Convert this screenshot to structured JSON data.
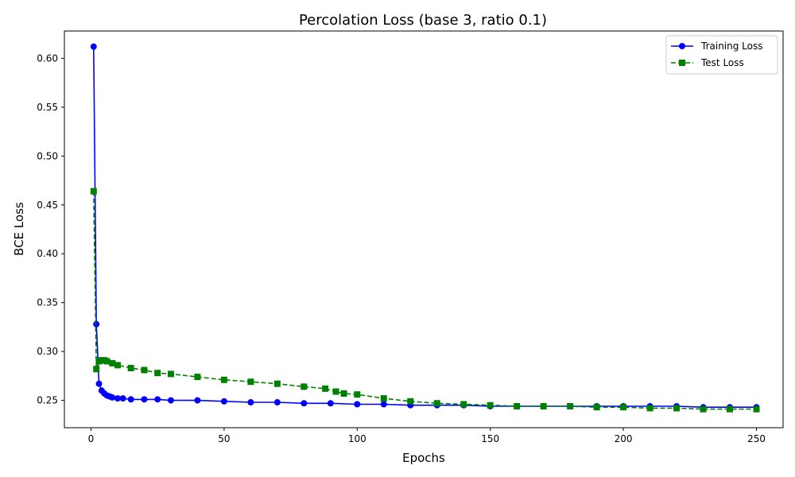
{
  "chart_data": {
    "type": "line",
    "title": "Percolation Loss (base 3, ratio 0.1)",
    "xlabel": "Epochs",
    "ylabel": "BCE Loss",
    "xlim": [
      -10,
      260
    ],
    "ylim": [
      0.222,
      0.628
    ],
    "xticks": [
      0,
      50,
      100,
      150,
      200,
      250
    ],
    "yticks": [
      0.25,
      0.3,
      0.35,
      0.4,
      0.45,
      0.5,
      0.55,
      0.6
    ],
    "grid": false,
    "legend_position": "top-right",
    "series": [
      {
        "name": "Training Loss",
        "color": "#0000ff",
        "marker": "circle",
        "linestyle": "solid",
        "x": [
          1,
          2,
          3,
          4,
          5,
          6,
          7,
          8,
          10,
          12,
          15,
          20,
          25,
          30,
          40,
          50,
          60,
          70,
          80,
          90,
          100,
          110,
          120,
          130,
          140,
          150,
          160,
          170,
          180,
          190,
          200,
          210,
          220,
          230,
          240,
          250
        ],
        "y": [
          0.612,
          0.328,
          0.267,
          0.26,
          0.257,
          0.255,
          0.254,
          0.253,
          0.252,
          0.252,
          0.251,
          0.251,
          0.251,
          0.25,
          0.25,
          0.249,
          0.248,
          0.248,
          0.247,
          0.247,
          0.246,
          0.246,
          0.245,
          0.245,
          0.245,
          0.244,
          0.244,
          0.244,
          0.244,
          0.244,
          0.244,
          0.244,
          0.244,
          0.243,
          0.243,
          0.243
        ]
      },
      {
        "name": "Test Loss",
        "color": "#008000",
        "marker": "square",
        "linestyle": "dashed",
        "x": [
          1,
          2,
          3,
          4,
          5,
          6,
          8,
          10,
          15,
          20,
          25,
          30,
          40,
          50,
          60,
          70,
          80,
          88,
          92,
          95,
          100,
          110,
          120,
          130,
          140,
          150,
          160,
          170,
          180,
          190,
          200,
          210,
          220,
          230,
          240,
          250
        ],
        "y": [
          0.464,
          0.282,
          0.29,
          0.291,
          0.291,
          0.29,
          0.288,
          0.286,
          0.283,
          0.281,
          0.278,
          0.277,
          0.274,
          0.271,
          0.269,
          0.267,
          0.264,
          0.262,
          0.259,
          0.257,
          0.256,
          0.252,
          0.249,
          0.247,
          0.246,
          0.245,
          0.244,
          0.244,
          0.244,
          0.243,
          0.243,
          0.242,
          0.242,
          0.241,
          0.241,
          0.241
        ]
      }
    ]
  }
}
